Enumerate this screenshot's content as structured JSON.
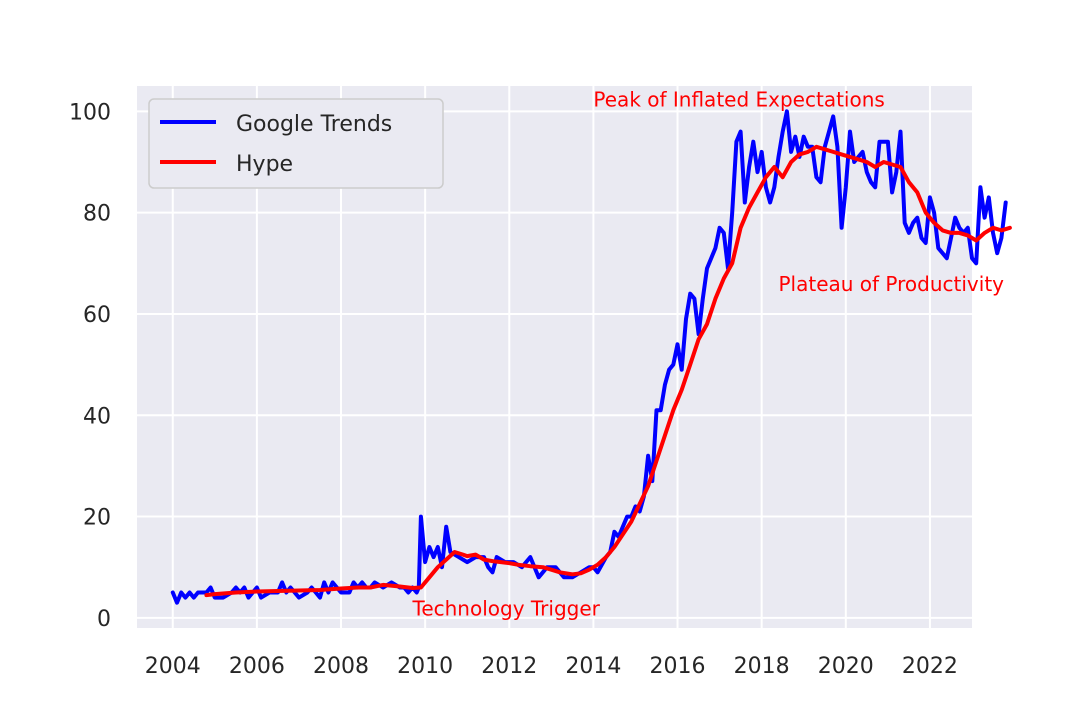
{
  "chart_data": {
    "type": "line",
    "title": "",
    "xlabel": "",
    "ylabel": "",
    "xlim": [
      2003.15,
      2023.0
    ],
    "ylim": [
      -2,
      105
    ],
    "grid": true,
    "legend_position": "top-left",
    "x_ticks": [
      2004,
      2006,
      2008,
      2010,
      2012,
      2014,
      2016,
      2018,
      2020,
      2022
    ],
    "x_tick_labels": [
      "2004",
      "2006",
      "2008",
      "2010",
      "2012",
      "2014",
      "2016",
      "2018",
      "2020",
      "2022"
    ],
    "y_ticks": [
      0,
      20,
      40,
      60,
      80,
      100
    ],
    "y_tick_labels": [
      "0",
      "20",
      "40",
      "60",
      "80",
      "100"
    ],
    "series": [
      {
        "name": "Google Trends",
        "color": "#0000ff",
        "points": [
          [
            2004.0,
            5
          ],
          [
            2004.1,
            3
          ],
          [
            2004.2,
            5
          ],
          [
            2004.3,
            4
          ],
          [
            2004.4,
            5
          ],
          [
            2004.5,
            4
          ],
          [
            2004.6,
            5
          ],
          [
            2004.7,
            5
          ],
          [
            2004.8,
            5
          ],
          [
            2004.9,
            6
          ],
          [
            2005.0,
            4
          ],
          [
            2005.2,
            4
          ],
          [
            2005.4,
            5
          ],
          [
            2005.5,
            6
          ],
          [
            2005.6,
            5
          ],
          [
            2005.7,
            6
          ],
          [
            2005.8,
            4
          ],
          [
            2006.0,
            6
          ],
          [
            2006.1,
            4
          ],
          [
            2006.3,
            5
          ],
          [
            2006.5,
            5
          ],
          [
            2006.6,
            7
          ],
          [
            2006.7,
            5
          ],
          [
            2006.8,
            6
          ],
          [
            2007.0,
            4
          ],
          [
            2007.2,
            5
          ],
          [
            2007.3,
            6
          ],
          [
            2007.4,
            5
          ],
          [
            2007.5,
            4
          ],
          [
            2007.6,
            7
          ],
          [
            2007.7,
            5
          ],
          [
            2007.8,
            7
          ],
          [
            2008.0,
            5
          ],
          [
            2008.2,
            5
          ],
          [
            2008.3,
            7
          ],
          [
            2008.4,
            6
          ],
          [
            2008.5,
            7
          ],
          [
            2008.6,
            6
          ],
          [
            2008.7,
            6
          ],
          [
            2008.8,
            7
          ],
          [
            2009.0,
            6
          ],
          [
            2009.2,
            7
          ],
          [
            2009.4,
            6
          ],
          [
            2009.5,
            6
          ],
          [
            2009.6,
            5
          ],
          [
            2009.7,
            6
          ],
          [
            2009.8,
            5
          ],
          [
            2009.85,
            6
          ],
          [
            2009.9,
            20
          ],
          [
            2010.0,
            11
          ],
          [
            2010.1,
            14
          ],
          [
            2010.2,
            12
          ],
          [
            2010.3,
            14
          ],
          [
            2010.4,
            10
          ],
          [
            2010.5,
            18
          ],
          [
            2010.6,
            13
          ],
          [
            2010.8,
            12
          ],
          [
            2011.0,
            11
          ],
          [
            2011.2,
            12
          ],
          [
            2011.4,
            12
          ],
          [
            2011.5,
            10
          ],
          [
            2011.6,
            9
          ],
          [
            2011.7,
            12
          ],
          [
            2011.9,
            11
          ],
          [
            2012.1,
            11
          ],
          [
            2012.3,
            10
          ],
          [
            2012.5,
            12
          ],
          [
            2012.7,
            8
          ],
          [
            2012.9,
            10
          ],
          [
            2013.1,
            10
          ],
          [
            2013.3,
            8
          ],
          [
            2013.5,
            8
          ],
          [
            2013.7,
            9
          ],
          [
            2013.9,
            10
          ],
          [
            2014.0,
            10
          ],
          [
            2014.1,
            9
          ],
          [
            2014.3,
            12
          ],
          [
            2014.4,
            13
          ],
          [
            2014.5,
            17
          ],
          [
            2014.6,
            16
          ],
          [
            2014.8,
            20
          ],
          [
            2014.9,
            20
          ],
          [
            2015.0,
            22
          ],
          [
            2015.1,
            21
          ],
          [
            2015.2,
            24
          ],
          [
            2015.3,
            32
          ],
          [
            2015.4,
            27
          ],
          [
            2015.5,
            41
          ],
          [
            2015.6,
            41
          ],
          [
            2015.7,
            46
          ],
          [
            2015.8,
            49
          ],
          [
            2015.9,
            50
          ],
          [
            2016.0,
            54
          ],
          [
            2016.1,
            49
          ],
          [
            2016.2,
            59
          ],
          [
            2016.3,
            64
          ],
          [
            2016.4,
            63
          ],
          [
            2016.5,
            56
          ],
          [
            2016.6,
            63
          ],
          [
            2016.7,
            69
          ],
          [
            2016.8,
            71
          ],
          [
            2016.9,
            73
          ],
          [
            2017.0,
            77
          ],
          [
            2017.1,
            76
          ],
          [
            2017.2,
            69
          ],
          [
            2017.3,
            80
          ],
          [
            2017.4,
            94
          ],
          [
            2017.5,
            96
          ],
          [
            2017.6,
            82
          ],
          [
            2017.7,
            89
          ],
          [
            2017.8,
            94
          ],
          [
            2017.9,
            88
          ],
          [
            2018.0,
            92
          ],
          [
            2018.1,
            85
          ],
          [
            2018.2,
            82
          ],
          [
            2018.3,
            85
          ],
          [
            2018.4,
            91
          ],
          [
            2018.5,
            96
          ],
          [
            2018.6,
            100
          ],
          [
            2018.7,
            92
          ],
          [
            2018.8,
            95
          ],
          [
            2018.9,
            91
          ],
          [
            2019.0,
            95
          ],
          [
            2019.1,
            93
          ],
          [
            2019.2,
            93
          ],
          [
            2019.3,
            87
          ],
          [
            2019.4,
            86
          ],
          [
            2019.5,
            93
          ],
          [
            2019.6,
            96
          ],
          [
            2019.7,
            99
          ],
          [
            2019.8,
            93
          ],
          [
            2019.9,
            77
          ],
          [
            2020.0,
            85
          ],
          [
            2020.1,
            96
          ],
          [
            2020.2,
            90
          ],
          [
            2020.3,
            91
          ],
          [
            2020.4,
            92
          ],
          [
            2020.5,
            88
          ],
          [
            2020.6,
            86
          ],
          [
            2020.7,
            85
          ],
          [
            2020.8,
            94
          ],
          [
            2020.9,
            94
          ],
          [
            2021.0,
            94
          ],
          [
            2021.1,
            84
          ],
          [
            2021.2,
            88
          ],
          [
            2021.3,
            96
          ],
          [
            2021.4,
            78
          ],
          [
            2021.5,
            76
          ],
          [
            2021.6,
            78
          ],
          [
            2021.7,
            79
          ],
          [
            2021.8,
            75
          ],
          [
            2021.9,
            74
          ],
          [
            2022.0,
            83
          ],
          [
            2022.1,
            80
          ],
          [
            2022.2,
            73
          ],
          [
            2022.3,
            72
          ],
          [
            2022.4,
            71
          ],
          [
            2022.5,
            75
          ],
          [
            2022.6,
            79
          ],
          [
            2022.7,
            77
          ],
          [
            2022.8,
            76
          ],
          [
            2022.9,
            77
          ],
          [
            2023.0,
            71
          ],
          [
            2023.1,
            70
          ],
          [
            2023.2,
            85
          ],
          [
            2023.3,
            79
          ],
          [
            2023.4,
            83
          ],
          [
            2023.5,
            76
          ],
          [
            2023.6,
            72
          ],
          [
            2023.7,
            75
          ],
          [
            2023.8,
            82
          ]
        ]
      },
      {
        "name": "Hype",
        "color": "#ff0000",
        "points": [
          [
            2004.8,
            4.5
          ],
          [
            2005.0,
            4.7
          ],
          [
            2005.5,
            5.0
          ],
          [
            2006.0,
            5.2
          ],
          [
            2006.5,
            5.3
          ],
          [
            2007.0,
            5.4
          ],
          [
            2007.5,
            5.5
          ],
          [
            2008.0,
            5.8
          ],
          [
            2008.4,
            6.0
          ],
          [
            2008.7,
            6.0
          ],
          [
            2009.0,
            6.5
          ],
          [
            2009.4,
            6.2
          ],
          [
            2009.7,
            5.9
          ],
          [
            2009.9,
            6.0
          ],
          [
            2010.1,
            8.0
          ],
          [
            2010.3,
            10.0
          ],
          [
            2010.5,
            11.5
          ],
          [
            2010.7,
            13.0
          ],
          [
            2010.9,
            12.5
          ],
          [
            2011.0,
            12.2
          ],
          [
            2011.2,
            12.5
          ],
          [
            2011.4,
            11.5
          ],
          [
            2011.6,
            11.2
          ],
          [
            2011.8,
            11.0
          ],
          [
            2012.0,
            10.8
          ],
          [
            2012.2,
            10.5
          ],
          [
            2012.5,
            10.2
          ],
          [
            2012.8,
            10.0
          ],
          [
            2013.0,
            9.5
          ],
          [
            2013.2,
            9.0
          ],
          [
            2013.5,
            8.6
          ],
          [
            2013.7,
            8.8
          ],
          [
            2013.9,
            9.5
          ],
          [
            2014.1,
            10.5
          ],
          [
            2014.3,
            12.0
          ],
          [
            2014.5,
            14.0
          ],
          [
            2014.7,
            16.5
          ],
          [
            2014.9,
            19.0
          ],
          [
            2015.1,
            22.5
          ],
          [
            2015.3,
            26.0
          ],
          [
            2015.5,
            31.0
          ],
          [
            2015.7,
            36.0
          ],
          [
            2015.9,
            41.0
          ],
          [
            2016.1,
            45.0
          ],
          [
            2016.3,
            50.0
          ],
          [
            2016.5,
            55.0
          ],
          [
            2016.7,
            58.0
          ],
          [
            2016.9,
            63.0
          ],
          [
            2017.1,
            67.0
          ],
          [
            2017.3,
            70.0
          ],
          [
            2017.5,
            77.0
          ],
          [
            2017.7,
            81.0
          ],
          [
            2017.9,
            84.0
          ],
          [
            2018.1,
            87.0
          ],
          [
            2018.3,
            89.0
          ],
          [
            2018.5,
            87.0
          ],
          [
            2018.7,
            90.0
          ],
          [
            2018.9,
            91.5
          ],
          [
            2019.1,
            92.0
          ],
          [
            2019.3,
            93.0
          ],
          [
            2019.5,
            92.5
          ],
          [
            2019.7,
            92.0
          ],
          [
            2019.9,
            91.5
          ],
          [
            2020.1,
            91.0
          ],
          [
            2020.3,
            90.5
          ],
          [
            2020.5,
            90.0
          ],
          [
            2020.7,
            89.0
          ],
          [
            2020.9,
            90.0
          ],
          [
            2021.1,
            89.5
          ],
          [
            2021.3,
            89.0
          ],
          [
            2021.5,
            86.0
          ],
          [
            2021.7,
            84.0
          ],
          [
            2021.9,
            80.0
          ],
          [
            2022.1,
            78.0
          ],
          [
            2022.3,
            76.5
          ],
          [
            2022.5,
            76.0
          ],
          [
            2022.7,
            76.0
          ],
          [
            2022.9,
            75.5
          ],
          [
            2023.1,
            74.5
          ],
          [
            2023.3,
            76.0
          ],
          [
            2023.5,
            77.0
          ],
          [
            2023.7,
            76.5
          ],
          [
            2023.9,
            77.0
          ]
        ]
      }
    ],
    "annotations": [
      {
        "text": "Technology Trigger",
        "x": 2009.7,
        "y": 0.5,
        "color": "#ff0000"
      },
      {
        "text": "Peak of Inflated Expectations",
        "x": 2014.0,
        "y": 101,
        "color": "#ff0000"
      },
      {
        "text": "Plateau of Productivity",
        "x": 2018.4,
        "y": 64.5,
        "color": "#ff0000"
      }
    ]
  }
}
